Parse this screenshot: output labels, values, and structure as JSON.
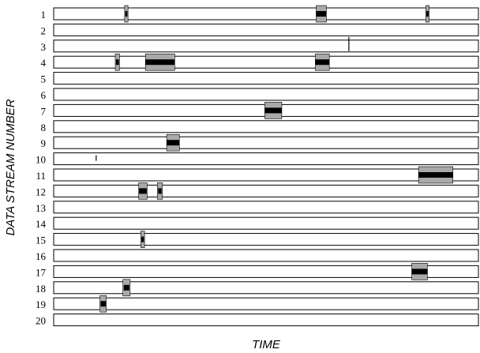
{
  "chart_data": {
    "type": "event-timeline",
    "xlabel": "TIME",
    "ylabel": "DATA STREAM NUMBER",
    "x_range": [
      0,
      1000
    ],
    "streams": [
      "1",
      "2",
      "3",
      "4",
      "5",
      "6",
      "7",
      "8",
      "9",
      "10",
      "11",
      "12",
      "13",
      "14",
      "15",
      "16",
      "17",
      "18",
      "19",
      "20"
    ],
    "events": [
      {
        "stream": 1,
        "start": 167,
        "end": 175,
        "inner_start": 168.5,
        "inner_end": 173.5
      },
      {
        "stream": 1,
        "start": 618,
        "end": 642,
        "inner_start": 618,
        "inner_end": 642
      },
      {
        "stream": 1,
        "start": 876,
        "end": 884,
        "inner_start": 877.5,
        "inner_end": 882.5
      },
      {
        "stream": 3,
        "start": 694,
        "end": 696,
        "marker": true
      },
      {
        "stream": 4,
        "start": 145,
        "end": 155,
        "inner_start": 146.5,
        "inner_end": 153.5
      },
      {
        "stream": 4,
        "start": 216,
        "end": 285,
        "inner_start": 216,
        "inner_end": 285
      },
      {
        "stream": 4,
        "start": 616,
        "end": 649,
        "inner_start": 616,
        "inner_end": 649
      },
      {
        "stream": 7,
        "start": 497,
        "end": 537,
        "inner_start": 497,
        "inner_end": 537
      },
      {
        "stream": 9,
        "start": 266,
        "end": 296,
        "inner_start": 266,
        "inner_end": 296
      },
      {
        "stream": 10,
        "start": 99,
        "end": 101,
        "marker": true
      },
      {
        "stream": 11,
        "start": 859,
        "end": 940,
        "inner_start": 859,
        "inner_end": 940
      },
      {
        "stream": 12,
        "start": 200,
        "end": 220,
        "inner_start": 201,
        "inner_end": 219
      },
      {
        "stream": 12,
        "start": 244,
        "end": 256,
        "inner_start": 246,
        "inner_end": 254
      },
      {
        "stream": 15,
        "start": 205,
        "end": 214,
        "inner_start": 206.5,
        "inner_end": 212.5
      },
      {
        "stream": 17,
        "start": 843,
        "end": 880,
        "inner_start": 843,
        "inner_end": 880
      },
      {
        "stream": 18,
        "start": 163,
        "end": 180,
        "inner_start": 165,
        "inner_end": 178
      },
      {
        "stream": 19,
        "start": 109,
        "end": 124,
        "inner_start": 110.5,
        "inner_end": 122.5
      }
    ]
  }
}
